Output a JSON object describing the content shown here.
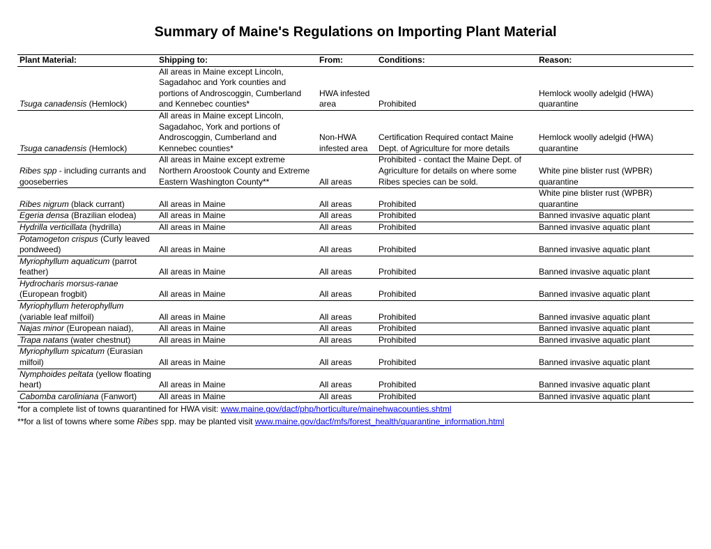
{
  "title": "Summary of Maine's Regulations on Importing Plant Material",
  "columns": {
    "plant": "Plant Material:",
    "shipping": "Shipping to:",
    "from": "From:",
    "conditions": "Conditions:",
    "reason": "Reason:"
  },
  "rows": [
    {
      "plant_sci": "Tsuga canadensis",
      "plant_common": " (Hemlock)",
      "shipping": "All areas in Maine except Lincoln, Sagadahoc and York counties and portions of Androscoggin, Cumberland and Kennebec counties*",
      "from": "HWA infested area",
      "conditions": "Prohibited",
      "reason": "Hemlock woolly adelgid (HWA) quarantine"
    },
    {
      "plant_sci": "Tsuga canadensis",
      "plant_common": " (Hemlock)",
      "shipping": "All areas in Maine except Lincoln, Sagadahoc, York and portions of Androscoggin, Cumberland and Kennebec counties*",
      "from": "Non-HWA infested area",
      "conditions": "Certification Required contact Maine Dept. of Agriculture for more details",
      "reason": "Hemlock woolly adelgid (HWA) quarantine"
    },
    {
      "plant_sci": "Ribes spp ",
      "plant_common": "- including currants and gooseberries",
      "shipping": "All areas in Maine except extreme Northern Aroostook County and Extreme Eastern Washington County**",
      "from": "All areas",
      "conditions": "Prohibited - contact the Maine Dept. of Agriculture for details on where some Ribes  species can be sold.",
      "reason": "White pine blister rust (WPBR) quarantine"
    },
    {
      "plant_sci": "Ribes nigrum ",
      "plant_common": " (black currant)",
      "shipping": "All areas in Maine",
      "from": "All areas",
      "conditions": "Prohibited",
      "reason": "White pine blister rust (WPBR) quarantine"
    },
    {
      "plant_sci": "Egeria densa ",
      "plant_common": " (Brazilian elodea)",
      "shipping": "All areas in Maine",
      "from": "All areas",
      "conditions": "Prohibited",
      "reason": "Banned invasive aquatic plant"
    },
    {
      "plant_sci": "Hydrilla verticillata ",
      "plant_common": " (hydrilla)",
      "shipping": "All areas in Maine",
      "from": "All areas",
      "conditions": "Prohibited",
      "reason": "Banned invasive aquatic plant"
    },
    {
      "plant_sci": "Potamogeton crispus ",
      "plant_common": " (Curly leaved pondweed)",
      "shipping": "All areas in Maine",
      "from": "All areas",
      "conditions": "Prohibited",
      "reason": "Banned invasive aquatic plant"
    },
    {
      "plant_sci": "Myriophyllum aquaticum",
      "plant_common": " (parrot feather)",
      "shipping": "All areas in Maine",
      "from": "All areas",
      "conditions": "Prohibited",
      "reason": "Banned invasive aquatic plant"
    },
    {
      "plant_sci": "Hydrocharis morsus-ranae",
      "plant_common": " (European frogbit)",
      "shipping": "All areas in Maine",
      "from": "All areas",
      "conditions": "Prohibited",
      "reason": "Banned invasive aquatic plant"
    },
    {
      "plant_sci": "Myriophyllum heterophyllum",
      "plant_common": " (variable leaf milfoil)",
      "shipping": "All areas in Maine",
      "from": "All areas",
      "conditions": "Prohibited",
      "reason": "Banned invasive aquatic plant"
    },
    {
      "plant_sci": "Najas minor ",
      "plant_common": " (European naiad),",
      "shipping": "All areas in Maine",
      "from": "All areas",
      "conditions": "Prohibited",
      "reason": "Banned invasive aquatic plant"
    },
    {
      "plant_sci": "Trapa natans ",
      "plant_common": " (water chestnut)",
      "shipping": "All areas in Maine",
      "from": "All areas",
      "conditions": "Prohibited",
      "reason": "Banned invasive aquatic plant"
    },
    {
      "plant_sci": "Myriophyllum spicatum",
      "plant_common": " (Eurasian milfoil)",
      "shipping": "All areas in Maine",
      "from": "All areas",
      "conditions": "Prohibited",
      "reason": "Banned invasive aquatic plant"
    },
    {
      "plant_sci": "Nymphoides peltata ",
      "plant_common": " (yellow floating heart)",
      "shipping": "All areas in Maine",
      "from": "All areas",
      "conditions": "Prohibited",
      "reason": "Banned invasive aquatic plant"
    },
    {
      "plant_sci": "Cabomba caroliniana",
      "plant_common": " (Fanwort)",
      "shipping": "All areas in Maine",
      "from": "All areas",
      "conditions": "Prohibited",
      "reason": "Banned invasive aquatic plant"
    }
  ],
  "footnotes": {
    "f1_text": "*for a complete list of towns quarantined for HWA visit: ",
    "f1_link": "www.maine.gov/dacf/php/horticulture/mainehwacounties.shtml",
    "f2_text_a": "**for a list of towns where some ",
    "f2_text_b": "Ribes ",
    "f2_text_c": " spp. may be planted visit ",
    "f2_link": "www.maine.gov/dacf/mfs/forest_health/quarantine_information.html"
  }
}
